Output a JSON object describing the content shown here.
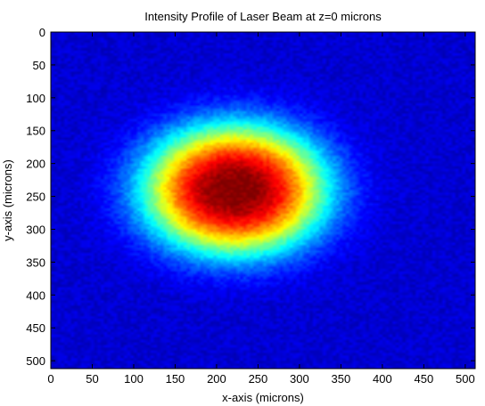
{
  "chart_data": {
    "type": "heatmap",
    "title": "Intensity Profile of Laser Beam at z=0 microns",
    "xlabel": "x-axis (microns)",
    "ylabel": "y-axis (microns)",
    "xlim": [
      0,
      512
    ],
    "ylim": [
      0,
      512
    ],
    "y_direction": "reversed",
    "x_ticks": [
      0,
      50,
      100,
      150,
      200,
      250,
      300,
      350,
      400,
      450,
      500
    ],
    "y_ticks": [
      0,
      50,
      100,
      150,
      200,
      250,
      300,
      350,
      400,
      450,
      500
    ],
    "x_tick_labels": [
      "0",
      "50",
      "100",
      "150",
      "200",
      "250",
      "300",
      "350",
      "400",
      "450",
      "500"
    ],
    "y_tick_labels": [
      "0",
      "50",
      "100",
      "150",
      "200",
      "250",
      "300",
      "350",
      "400",
      "450",
      "500"
    ],
    "colormap": "jet",
    "grid": false,
    "beam_profile": {
      "center_x": 222,
      "center_y": 240,
      "sigma_x": 118,
      "sigma_y": 106,
      "peak_intensity": 1.0,
      "background_intensity": 0.08
    },
    "colors": {
      "colormap_low": "#00008f",
      "colormap_mid": "#80ff80",
      "colormap_high": "#800000",
      "background": "#ffffff",
      "axes": "#000000"
    }
  }
}
